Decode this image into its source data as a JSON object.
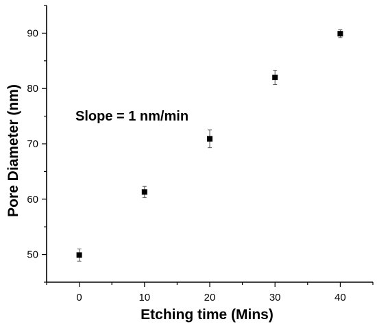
{
  "chart_data": {
    "type": "scatter",
    "title": "",
    "xlabel": "Etching time (Mins)",
    "ylabel": "Pore Diameter (nm)",
    "annotation": "Slope = 1 nm/min",
    "xlim": [
      -5,
      45
    ],
    "ylim": [
      45,
      95
    ],
    "x_ticks": [
      0,
      10,
      20,
      30,
      40
    ],
    "y_ticks": [
      50,
      60,
      70,
      80,
      90
    ],
    "grid": false,
    "series": [
      {
        "marker": "square",
        "color": "#000000",
        "points": [
          {
            "x": 0,
            "y": 49.9,
            "err": 1.1
          },
          {
            "x": 10,
            "y": 61.3,
            "err": 1.0
          },
          {
            "x": 20,
            "y": 70.9,
            "err": 1.6
          },
          {
            "x": 30,
            "y": 82.0,
            "err": 1.3
          },
          {
            "x": 40,
            "y": 89.9,
            "err": 0.7
          }
        ]
      }
    ]
  }
}
